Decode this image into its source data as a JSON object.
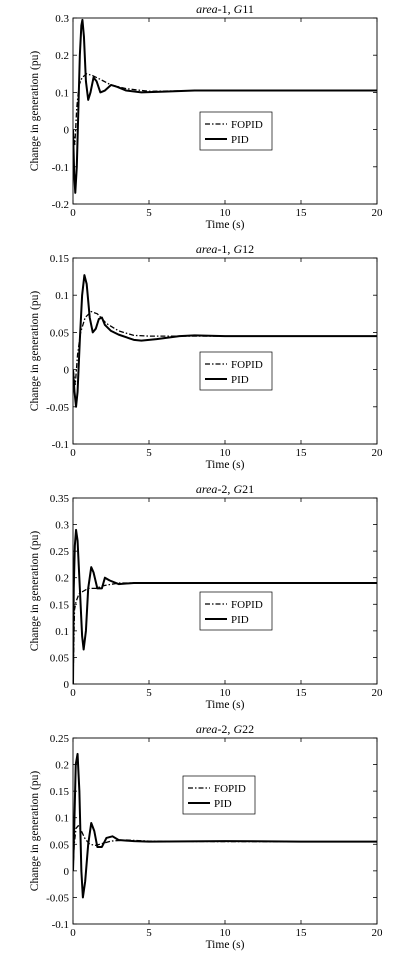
{
  "chart_data": [
    {
      "type": "line",
      "title": "area-1, G11",
      "title_parts": {
        "area": "area",
        "suffix": "-1, ",
        "gen": "G",
        "num": "11"
      },
      "xlabel": "Time (s)",
      "ylabel": "Change in generation (pu)",
      "xlim": [
        0,
        20
      ],
      "ylim": [
        -0.2,
        0.3
      ],
      "xticks": [
        "0",
        "5",
        "10",
        "15",
        "20"
      ],
      "yticks": [
        "-0.2",
        "-0.1",
        "0",
        "0.1",
        "0.2",
        "0.3"
      ],
      "legend": {
        "placement": "center-right",
        "entries": [
          "FOPID",
          "PID"
        ]
      },
      "series": [
        {
          "name": "FOPID",
          "style": "dash-dot",
          "points": [
            [
              0,
              0
            ],
            [
              0.12,
              -0.04
            ],
            [
              0.25,
              0.06
            ],
            [
              0.4,
              0.12
            ],
            [
              0.6,
              0.14
            ],
            [
              0.9,
              0.15
            ],
            [
              1.3,
              0.145
            ],
            [
              1.8,
              0.135
            ],
            [
              2.5,
              0.12
            ],
            [
              3.5,
              0.11
            ],
            [
              5,
              0.103
            ],
            [
              7,
              0.104
            ],
            [
              10,
              0.105
            ],
            [
              15,
              0.105
            ],
            [
              20,
              0.105
            ]
          ]
        },
        {
          "name": "PID",
          "style": "solid",
          "points": [
            [
              0,
              0
            ],
            [
              0.08,
              -0.12
            ],
            [
              0.15,
              -0.17
            ],
            [
              0.25,
              -0.1
            ],
            [
              0.35,
              0.05
            ],
            [
              0.45,
              0.2
            ],
            [
              0.55,
              0.28
            ],
            [
              0.62,
              0.295
            ],
            [
              0.72,
              0.25
            ],
            [
              0.85,
              0.13
            ],
            [
              1.0,
              0.08
            ],
            [
              1.15,
              0.1
            ],
            [
              1.35,
              0.14
            ],
            [
              1.55,
              0.13
            ],
            [
              1.8,
              0.1
            ],
            [
              2.1,
              0.105
            ],
            [
              2.5,
              0.12
            ],
            [
              2.9,
              0.115
            ],
            [
              3.5,
              0.105
            ],
            [
              4.5,
              0.1
            ],
            [
              6,
              0.102
            ],
            [
              8,
              0.105
            ],
            [
              10,
              0.105
            ],
            [
              15,
              0.105
            ],
            [
              20,
              0.105
            ]
          ]
        }
      ]
    },
    {
      "type": "line",
      "title": "area-1, G12",
      "title_parts": {
        "area": "area",
        "suffix": "-1, ",
        "gen": "G",
        "num": "12"
      },
      "xlabel": "Time (s)",
      "ylabel": "Change in generation (pu)",
      "xlim": [
        0,
        20
      ],
      "ylim": [
        -0.1,
        0.15
      ],
      "xticks": [
        "0",
        "5",
        "10",
        "15",
        "20"
      ],
      "yticks": [
        "-0.1",
        "-0.05",
        "0",
        "0.05",
        "0.1",
        "0.15"
      ],
      "legend": {
        "placement": "center-right",
        "entries": [
          "FOPID",
          "PID"
        ]
      },
      "series": [
        {
          "name": "FOPID",
          "style": "dash-dot",
          "points": [
            [
              0,
              0
            ],
            [
              0.15,
              -0.02
            ],
            [
              0.3,
              0.02
            ],
            [
              0.5,
              0.05
            ],
            [
              0.8,
              0.07
            ],
            [
              1.2,
              0.078
            ],
            [
              1.6,
              0.075
            ],
            [
              2.2,
              0.062
            ],
            [
              3,
              0.052
            ],
            [
              4,
              0.046
            ],
            [
              5,
              0.045
            ],
            [
              7,
              0.045
            ],
            [
              10,
              0.045
            ],
            [
              15,
              0.045
            ],
            [
              20,
              0.045
            ]
          ]
        },
        {
          "name": "PID",
          "style": "solid",
          "points": [
            [
              0,
              0
            ],
            [
              0.1,
              -0.03
            ],
            [
              0.2,
              -0.05
            ],
            [
              0.3,
              -0.03
            ],
            [
              0.45,
              0.04
            ],
            [
              0.6,
              0.1
            ],
            [
              0.75,
              0.127
            ],
            [
              0.9,
              0.115
            ],
            [
              1.1,
              0.07
            ],
            [
              1.3,
              0.05
            ],
            [
              1.5,
              0.055
            ],
            [
              1.7,
              0.068
            ],
            [
              1.9,
              0.07
            ],
            [
              2.1,
              0.06
            ],
            [
              2.5,
              0.052
            ],
            [
              3,
              0.047
            ],
            [
              4,
              0.04
            ],
            [
              4.5,
              0.039
            ],
            [
              5.5,
              0.041
            ],
            [
              7,
              0.045
            ],
            [
              8,
              0.046
            ],
            [
              10,
              0.045
            ],
            [
              15,
              0.045
            ],
            [
              20,
              0.045
            ]
          ]
        }
      ]
    },
    {
      "type": "line",
      "title": "area-2, G21",
      "title_parts": {
        "area": "area",
        "suffix": "-2, ",
        "gen": "G",
        "num": "21"
      },
      "xlabel": "Time (s)",
      "ylabel": "Change in generation (pu)",
      "xlim": [
        0,
        20
      ],
      "ylim": [
        0,
        0.35
      ],
      "xticks": [
        "0",
        "5",
        "10",
        "15",
        "20"
      ],
      "yticks": [
        "0",
        "0.05",
        "0.1",
        "0.15",
        "0.2",
        "0.25",
        "0.3",
        "0.35"
      ],
      "legend": {
        "placement": "center-right",
        "entries": [
          "FOPID",
          "PID"
        ]
      },
      "series": [
        {
          "name": "FOPID",
          "style": "dash-dot",
          "points": [
            [
              0,
              0
            ],
            [
              0.1,
              0.14
            ],
            [
              0.2,
              0.155
            ],
            [
              0.4,
              0.17
            ],
            [
              0.7,
              0.175
            ],
            [
              1.0,
              0.18
            ],
            [
              1.5,
              0.18
            ],
            [
              2,
              0.185
            ],
            [
              3,
              0.19
            ],
            [
              5,
              0.19
            ],
            [
              10,
              0.19
            ],
            [
              15,
              0.19
            ],
            [
              20,
              0.19
            ]
          ]
        },
        {
          "name": "PID",
          "style": "solid",
          "points": [
            [
              0,
              0
            ],
            [
              0.05,
              0.18
            ],
            [
              0.12,
              0.26
            ],
            [
              0.2,
              0.29
            ],
            [
              0.3,
              0.27
            ],
            [
              0.45,
              0.18
            ],
            [
              0.6,
              0.09
            ],
            [
              0.7,
              0.065
            ],
            [
              0.85,
              0.1
            ],
            [
              1.0,
              0.18
            ],
            [
              1.2,
              0.22
            ],
            [
              1.35,
              0.21
            ],
            [
              1.6,
              0.18
            ],
            [
              1.9,
              0.18
            ],
            [
              2.1,
              0.2
            ],
            [
              2.4,
              0.195
            ],
            [
              3,
              0.188
            ],
            [
              4,
              0.19
            ],
            [
              5,
              0.19
            ],
            [
              10,
              0.19
            ],
            [
              15,
              0.19
            ],
            [
              20,
              0.19
            ]
          ]
        }
      ]
    },
    {
      "type": "line",
      "title": "area-2, G22",
      "title_parts": {
        "area": "area",
        "suffix": "-2, ",
        "gen": "G",
        "num": "22"
      },
      "xlabel": "Time (s)",
      "ylabel": "Change in generation (pu)",
      "xlim": [
        0,
        20
      ],
      "ylim": [
        -0.1,
        0.25
      ],
      "xticks": [
        "0",
        "5",
        "10",
        "15",
        "20"
      ],
      "yticks": [
        "-0.1",
        "-0.05",
        "0",
        "0.05",
        "0.1",
        "0.15",
        "0.2",
        "0.25"
      ],
      "legend": {
        "placement": "top-center",
        "entries": [
          "FOPID",
          "PID"
        ]
      },
      "series": [
        {
          "name": "FOPID",
          "style": "dash-dot",
          "points": [
            [
              0,
              0
            ],
            [
              0.08,
              0.05
            ],
            [
              0.2,
              0.08
            ],
            [
              0.35,
              0.085
            ],
            [
              0.55,
              0.075
            ],
            [
              0.8,
              0.06
            ],
            [
              1.1,
              0.05
            ],
            [
              1.5,
              0.048
            ],
            [
              2,
              0.052
            ],
            [
              2.5,
              0.056
            ],
            [
              3.5,
              0.058
            ],
            [
              5,
              0.056
            ],
            [
              10,
              0.055
            ],
            [
              15,
              0.055
            ],
            [
              20,
              0.055
            ]
          ]
        },
        {
          "name": "PID",
          "style": "solid",
          "points": [
            [
              0,
              0
            ],
            [
              0.08,
              0.08
            ],
            [
              0.18,
              0.2
            ],
            [
              0.3,
              0.22
            ],
            [
              0.42,
              0.15
            ],
            [
              0.55,
              0.0
            ],
            [
              0.65,
              -0.05
            ],
            [
              0.8,
              -0.02
            ],
            [
              1.0,
              0.05
            ],
            [
              1.2,
              0.09
            ],
            [
              1.4,
              0.075
            ],
            [
              1.6,
              0.045
            ],
            [
              1.9,
              0.045
            ],
            [
              2.2,
              0.062
            ],
            [
              2.6,
              0.065
            ],
            [
              3,
              0.058
            ],
            [
              4,
              0.056
            ],
            [
              5,
              0.055
            ],
            [
              10,
              0.056
            ],
            [
              15,
              0.055
            ],
            [
              20,
              0.055
            ]
          ]
        }
      ]
    }
  ]
}
